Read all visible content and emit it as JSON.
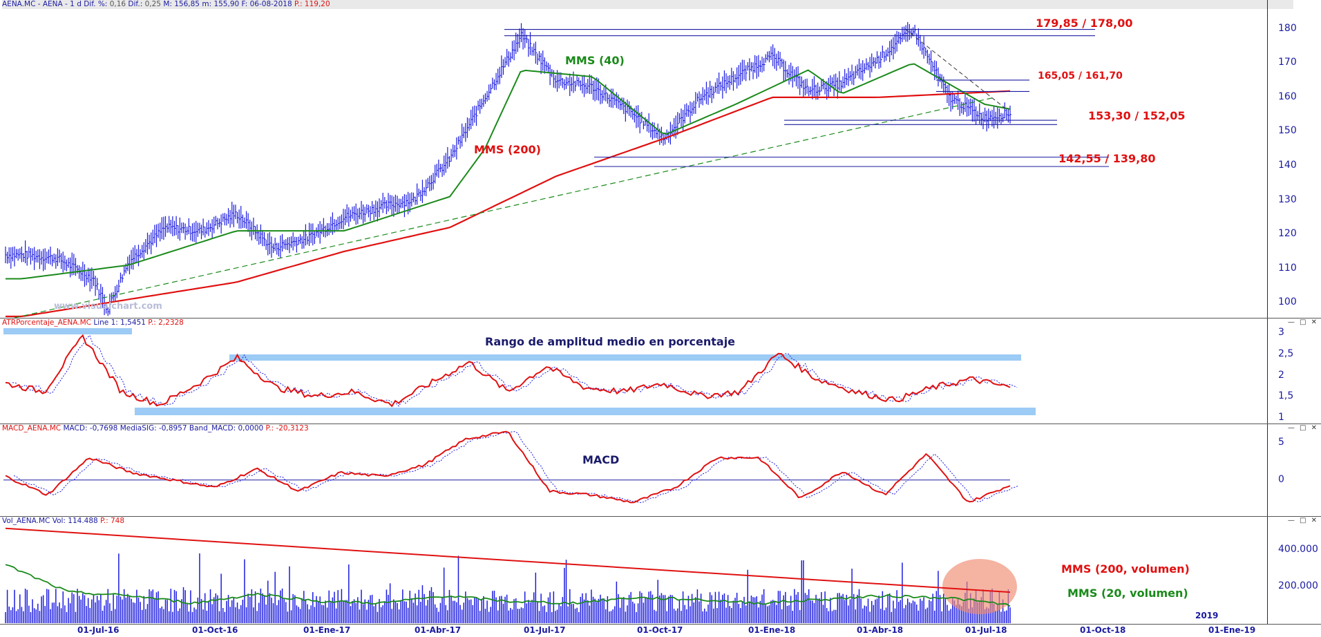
{
  "colors": {
    "axis": "#1a1aa0",
    "price": "#1a1ae0",
    "mms200": "#e01010",
    "mms40": "#1a8a1a",
    "band": "#9ccbf5",
    "vol_ellipse": "#f08a70"
  },
  "price_panel": {
    "header": {
      "symbol": "AENA.MC - AENA - 1 d",
      "dif_pct_label": "Dif. %:",
      "dif_pct": "0,16",
      "dif_label": "Dif.:",
      "dif": "0,25",
      "max": "M: 156,85",
      "min": "m: 155,90",
      "date": "F: 06-08-2018",
      "p": "P.: 119,20"
    },
    "y_ticks": [
      "180",
      "170",
      "160",
      "150",
      "140",
      "130",
      "120",
      "110",
      "100"
    ],
    "watermark": "www.visualchart.com",
    "labels": {
      "mms40": "MMS (40)",
      "mms200": "MMS (200)",
      "r1": "179,85 / 178,00",
      "r2": "165,05 / 161,70",
      "s1": "153,30 / 152,05",
      "s2": "142,55 / 139,80"
    }
  },
  "atr_panel": {
    "header": {
      "name": "ATRPorcentaje_AENA.MC",
      "line1": "Line 1: 1,5451",
      "p": "P.: 2,2328"
    },
    "title": "Rango de amplitud medio en porcentaje",
    "y_ticks": [
      "3",
      "2,5",
      "2",
      "1,5",
      "1"
    ]
  },
  "macd_panel": {
    "header": {
      "name": "MACD_AENA.MC",
      "macd": "MACD: -0,7698",
      "signal": "MediaSIG: -0,8957",
      "band": "Band_MACD: 0,0000",
      "p": "P.: -20,3123"
    },
    "title": "MACD",
    "y_ticks": [
      "5",
      "0"
    ]
  },
  "volume_panel": {
    "header": {
      "name": "Vol_AENA.MC",
      "vol": "Vol: 114.488",
      "p": "P.: 748"
    },
    "y_ticks": [
      "400.000",
      "200.000"
    ],
    "labels": {
      "mms200": "MMS (200, volumen)",
      "mms20": "MMS (20, volumen)"
    }
  },
  "x_ticks": [
    "01-Jul-16",
    "01-Oct-16",
    "01-Ene-17",
    "01-Abr-17",
    "01-Jul-17",
    "01-Oct-17",
    "01-Ene-18",
    "01-Abr-18",
    "01-Jul-18",
    "01-Oct-18",
    "01-Ene-19"
  ],
  "x_year_label": "2019",
  "chart_data": {
    "type": "line",
    "series": [
      {
        "name": "AENA.MC",
        "points": [
          [
            "2016-04",
            114
          ],
          [
            "2016-05",
            113
          ],
          [
            "2016-06",
            107
          ],
          [
            "2016-06-27",
            98
          ],
          [
            "2016-07",
            112
          ],
          [
            "2016-08",
            122
          ],
          [
            "2016-09",
            121
          ],
          [
            "2016-10",
            126
          ],
          [
            "2016-11",
            116
          ],
          [
            "2016-12",
            119
          ],
          [
            "2017-01",
            125
          ],
          [
            "2017-02",
            128
          ],
          [
            "2017-03",
            130
          ],
          [
            "2017-04",
            142
          ],
          [
            "2017-05",
            160
          ],
          [
            "2017-06",
            178
          ],
          [
            "2017-07",
            165
          ],
          [
            "2017-08",
            163
          ],
          [
            "2017-09",
            156
          ],
          [
            "2017-10",
            148
          ],
          [
            "2017-11",
            160
          ],
          [
            "2017-12",
            166
          ],
          [
            "2018-01",
            172
          ],
          [
            "2018-02",
            162
          ],
          [
            "2018-03",
            164
          ],
          [
            "2018-04",
            171
          ],
          [
            "2018-05",
            180
          ],
          [
            "2018-06",
            160
          ],
          [
            "2018-07",
            154
          ],
          [
            "2018-08",
            156
          ]
        ]
      },
      {
        "name": "MMS (40)",
        "points": [
          [
            "2016-04",
            107
          ],
          [
            "2016-07",
            111
          ],
          [
            "2016-10",
            121
          ],
          [
            "2017-01",
            121
          ],
          [
            "2017-04",
            131
          ],
          [
            "2017-05",
            145
          ],
          [
            "2017-06",
            168
          ],
          [
            "2017-08",
            166
          ],
          [
            "2017-10",
            149
          ],
          [
            "2017-12",
            158
          ],
          [
            "2018-02",
            168
          ],
          [
            "2018-03",
            161
          ],
          [
            "2018-05",
            170
          ],
          [
            "2018-07",
            158
          ],
          [
            "2018-08",
            156
          ]
        ]
      },
      {
        "name": "MMS (200)",
        "points": [
          [
            "2016-04",
            96
          ],
          [
            "2016-10",
            106
          ],
          [
            "2017-01",
            115
          ],
          [
            "2017-04",
            122
          ],
          [
            "2017-07",
            137
          ],
          [
            "2017-10",
            148
          ],
          [
            "2018-01",
            160
          ],
          [
            "2018-04",
            160
          ],
          [
            "2018-08",
            162
          ]
        ]
      }
    ],
    "levels": [
      [
        179.85,
        178.0
      ],
      [
        165.05,
        161.7
      ],
      [
        153.3,
        152.05
      ],
      [
        142.55,
        139.8
      ]
    ],
    "y_range": [
      96,
      184
    ],
    "atr": {
      "points": [
        1.8,
        1.6,
        2.9,
        1.6,
        1.3,
        1.8,
        2.4,
        1.7,
        1.5,
        1.6,
        1.3,
        1.8,
        2.3,
        1.6,
        2.2,
        1.7,
        1.6,
        1.8,
        1.5,
        1.6,
        2.5,
        1.9,
        1.6,
        1.4,
        1.7,
        1.9,
        1.7
      ],
      "range": [
        1,
        3
      ]
    },
    "macd": {
      "points": [
        0.5,
        -2,
        3,
        1,
        0,
        -1,
        1.5,
        -1.5,
        1,
        0.5,
        2,
        5.5,
        6.5,
        -1.5,
        -2,
        -3,
        -1,
        3,
        3,
        -2.5,
        1.2,
        -2,
        3.5,
        -3,
        -0.7
      ],
      "range": [
        -4,
        6
      ]
    },
    "volume_range": [
      0,
      500000
    ]
  }
}
